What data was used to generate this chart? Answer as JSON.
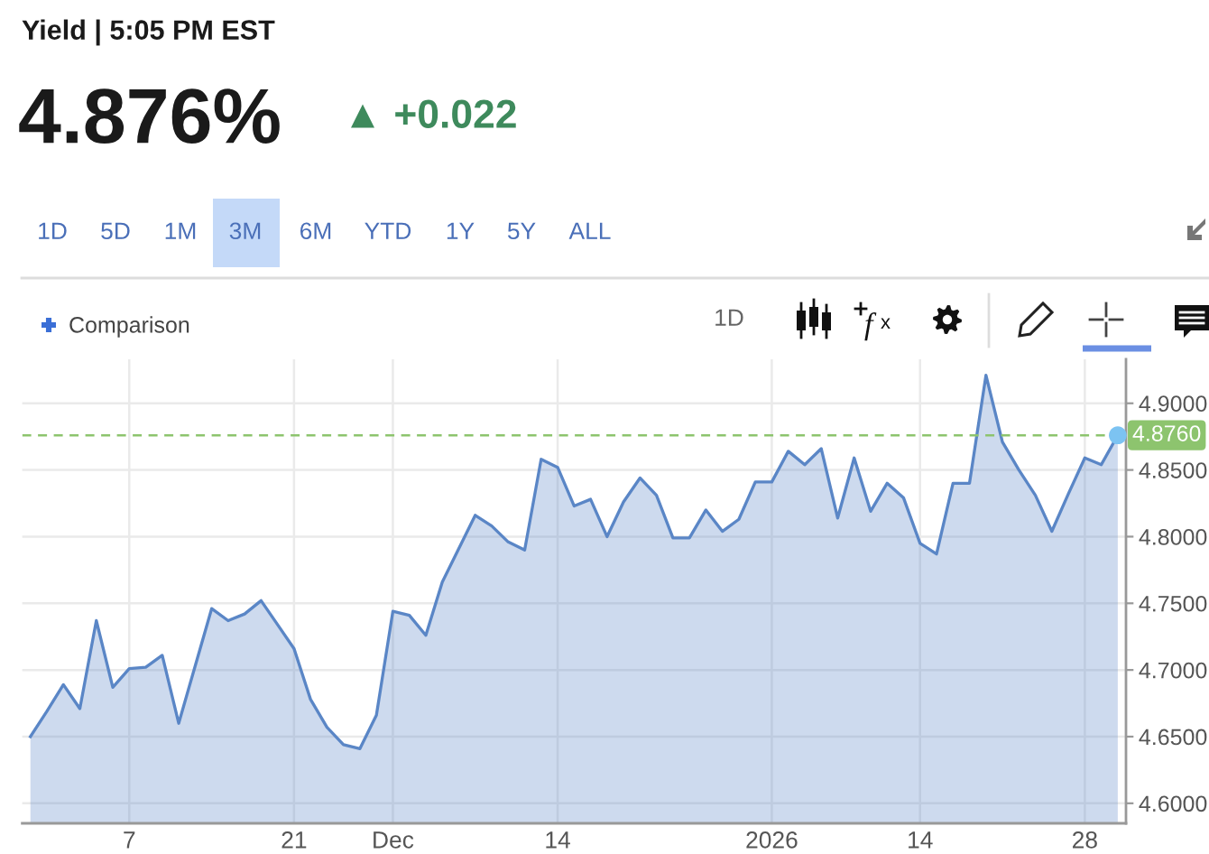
{
  "chart_data": {
    "type": "area",
    "title": "Yield | 5:05 PM EST",
    "subtitle": "4.876%",
    "annotations": [
      "▲ +0.022",
      "1D",
      "5D",
      "1M",
      "3M",
      "6M",
      "YTD",
      "1Y",
      "5Y",
      "ALL",
      "Comparison",
      "1D"
    ],
    "categories": [
      null,
      null,
      null,
      null,
      null,
      null,
      "7",
      null,
      null,
      null,
      null,
      null,
      null,
      null,
      null,
      null,
      "21",
      null,
      null,
      null,
      null,
      null,
      "Dec",
      null,
      null,
      null,
      null,
      null,
      null,
      null,
      null,
      null,
      "14",
      null,
      null,
      null,
      null,
      null,
      null,
      null,
      null,
      null,
      null,
      null,
      null,
      "2026",
      null,
      null,
      null,
      null,
      null,
      null,
      null,
      null,
      "14",
      null,
      null,
      null,
      null,
      null,
      null,
      null,
      null,
      null,
      "28",
      null,
      null
    ],
    "series": [
      {
        "color": "#5a86c6",
        "values": [
          4.65,
          4.669,
          4.689,
          4.671,
          4.737,
          4.687,
          4.701,
          4.702,
          4.711,
          4.66,
          4.703,
          4.746,
          4.737,
          4.742,
          4.752,
          4.734,
          4.716,
          4.678,
          4.657,
          4.644,
          4.641,
          4.666,
          4.744,
          4.741,
          4.726,
          4.766,
          4.791,
          4.816,
          4.808,
          4.796,
          4.79,
          4.858,
          4.852,
          4.823,
          4.828,
          4.8,
          4.826,
          4.844,
          4.831,
          4.799,
          4.799,
          4.82,
          4.804,
          4.813,
          4.841,
          4.841,
          4.864,
          4.854,
          4.866,
          4.814,
          4.859,
          4.819,
          4.84,
          4.829,
          4.795,
          4.787,
          4.84,
          4.84,
          4.921,
          4.871,
          4.85,
          4.831,
          4.804,
          4.832,
          4.859,
          4.854,
          4.876
        ]
      },
      {
        "type": "scatter",
        "color": "#7cc3f2",
        "values": [
          null,
          null,
          null,
          null,
          null,
          null,
          null,
          null,
          null,
          null,
          null,
          null,
          null,
          null,
          null,
          null,
          null,
          null,
          null,
          null,
          null,
          null,
          null,
          null,
          null,
          null,
          null,
          null,
          null,
          null,
          null,
          null,
          null,
          null,
          null,
          null,
          null,
          null,
          null,
          null,
          null,
          null,
          null,
          null,
          null,
          null,
          null,
          null,
          null,
          null,
          null,
          null,
          null,
          null,
          null,
          null,
          null,
          null,
          null,
          null,
          null,
          null,
          null,
          null,
          null,
          null,
          4.876
        ]
      }
    ],
    "ylim": [
      4.585,
      4.933
    ],
    "yticks": [
      {
        "value": 4.6,
        "label": "4.6000"
      },
      {
        "value": 4.65,
        "label": "4.6500"
      },
      {
        "value": 4.7,
        "label": "4.7000"
      },
      {
        "value": 4.75,
        "label": "4.7500"
      },
      {
        "value": 4.8,
        "label": "4.8000"
      },
      {
        "value": 4.85,
        "label": "4.8500"
      },
      {
        "value": 4.9,
        "label": "4.9000"
      }
    ],
    "ref_lines": [
      {
        "axis": "y",
        "value": 4.876,
        "label": "4.8760",
        "color": "#8dc46e",
        "line_style": "dashed"
      }
    ],
    "grid": true
  }
}
